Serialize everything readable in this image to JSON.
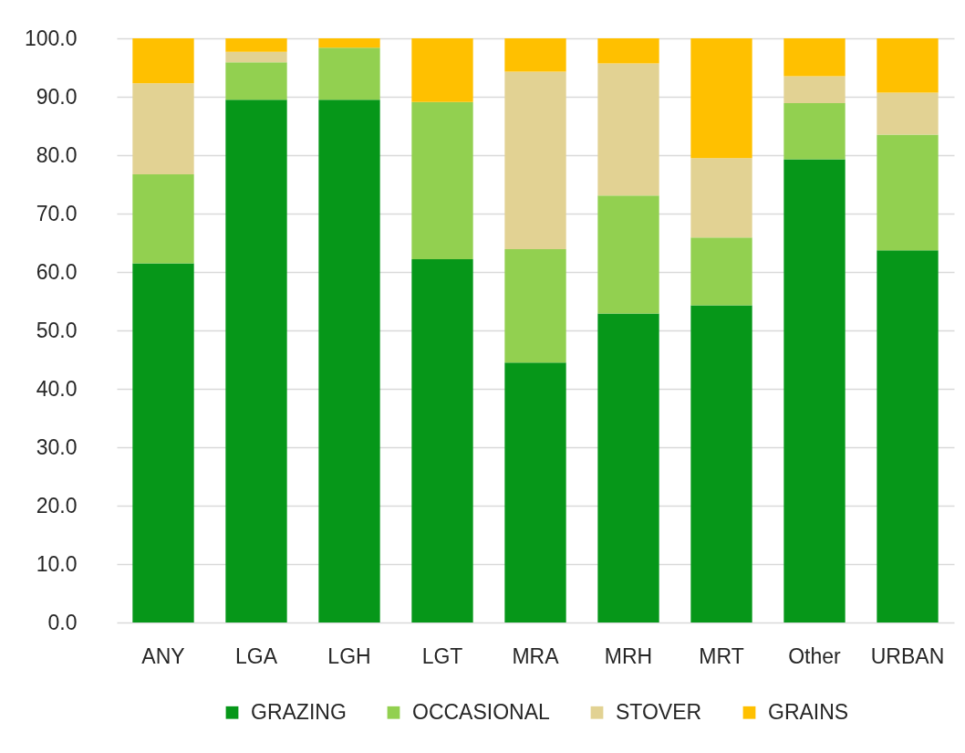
{
  "chart_data": {
    "type": "bar",
    "stacked": true,
    "categories": [
      "ANY",
      "LGA",
      "LGH",
      "LGT",
      "MRA",
      "MRH",
      "MRT",
      "Other",
      "URBAN"
    ],
    "series": [
      {
        "name": "GRAZING",
        "color": "#069719",
        "values": [
          61.5,
          89.5,
          89.5,
          62.2,
          44.5,
          52.9,
          54.3,
          79.3,
          63.7
        ]
      },
      {
        "name": "OCCASIONAL",
        "color": "#92d050",
        "values": [
          15.2,
          6.4,
          8.9,
          26.9,
          19.4,
          20.2,
          11.6,
          9.6,
          19.8
        ]
      },
      {
        "name": "STOVER",
        "color": "#e2d293",
        "values": [
          15.6,
          1.8,
          0,
          0,
          30.4,
          22.6,
          13.6,
          4.6,
          7.2
        ]
      },
      {
        "name": "GRAINS",
        "color": "#ffc000",
        "values": [
          7.7,
          2.3,
          1.6,
          10.9,
          5.7,
          4.3,
          20.5,
          6.5,
          9.3
        ]
      }
    ],
    "ylim": [
      0,
      100
    ],
    "yticks": [
      {
        "value": 0,
        "label": "0.0"
      },
      {
        "value": 10,
        "label": "10.0"
      },
      {
        "value": 20,
        "label": "20.0"
      },
      {
        "value": 30,
        "label": "30.0"
      },
      {
        "value": 40,
        "label": "40.0"
      },
      {
        "value": 50,
        "label": "50.0"
      },
      {
        "value": 60,
        "label": "60.0"
      },
      {
        "value": 70,
        "label": "70.0"
      },
      {
        "value": 80,
        "label": "80.0"
      },
      {
        "value": 90,
        "label": "90.0"
      },
      {
        "value": 100,
        "label": "100.0"
      }
    ],
    "grid": "y",
    "legend": "bottom"
  }
}
